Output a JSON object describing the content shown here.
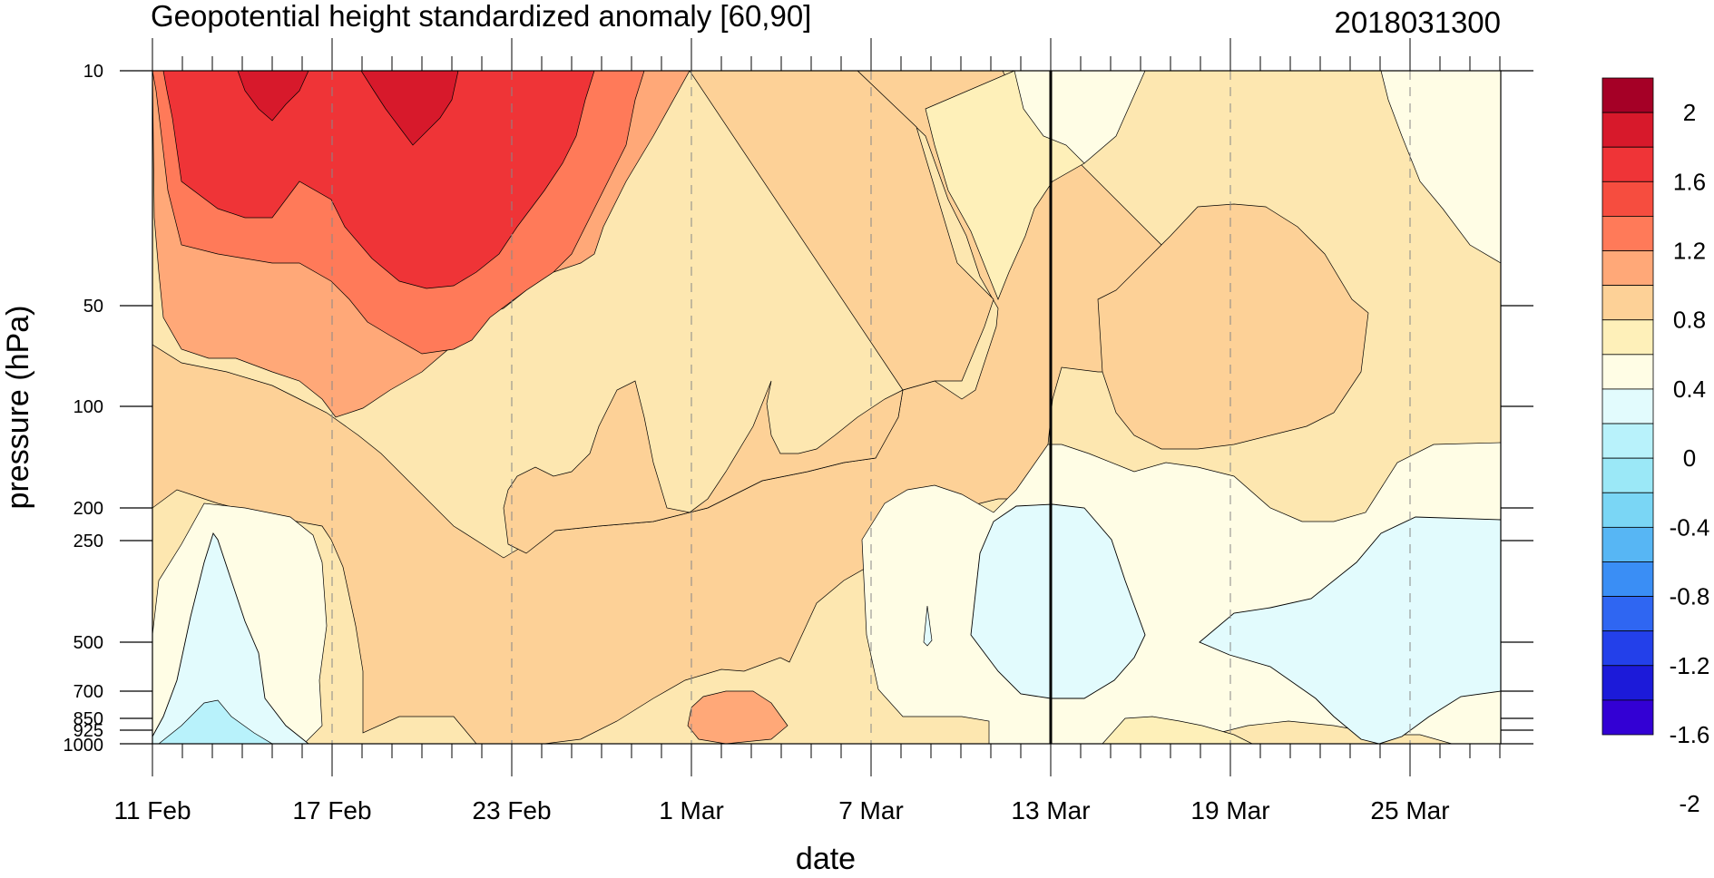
{
  "chart_data": {
    "type": "heatmap",
    "title": "Geopotential height standardized anomaly [60,90]",
    "subtitle": "2018031300",
    "xlabel": "date",
    "ylabel": "pressure (hPa)",
    "x_ticks": [
      "11 Feb",
      "17 Feb",
      "23 Feb",
      "1 Mar",
      "7 Mar",
      "13 Mar",
      "19 Mar",
      "25 Mar"
    ],
    "x_range": [
      "11 Feb",
      "27 Mar"
    ],
    "y_scale": "log",
    "y_reversed": true,
    "y_range": [
      1000,
      10
    ],
    "y_ticks": [
      10,
      50,
      100,
      200,
      250,
      500,
      700,
      850,
      925,
      1000
    ],
    "current_date_marker": "13 Mar",
    "grid": "dashed vertical at labeled dates",
    "colorbar": {
      "labels": [
        "2",
        "1.6",
        "1.2",
        "0.8",
        "0.4",
        "0",
        "-0.4",
        "-0.8",
        "-1.2",
        "-1.6",
        "-2"
      ],
      "colors": [
        "#a50026",
        "#d7192b",
        "#ef3437",
        "#f64d3f",
        "#ff7a59",
        "#ffa878",
        "#fdd197",
        "#fef0b9",
        "#fffde5",
        "#e2fbfd",
        "#b8f2fb",
        "#9be8f7",
        "#7ad6f5",
        "#57b6f4",
        "#3a8ef5",
        "#2f66f2",
        "#2340ea",
        "#1c1ad9",
        "#3300d4"
      ]
    },
    "regions": [
      {
        "value": "0 to 0.4",
        "color": "#fef0b9"
      },
      {
        "value": "0.4 to 0.8",
        "color": "#fdd197"
      },
      {
        "value": "0.8 to 1.2",
        "color": "#ffa878"
      },
      {
        "value": "1.2 to 1.6",
        "color": "#ff7a59"
      },
      {
        "value": "1.6 to 2",
        "color": "#ef3437"
      },
      {
        "value": ">2",
        "color": "#d7192b"
      },
      {
        "value": "-0.4 to 0",
        "color": "#fffde5"
      },
      {
        "value": "<-0.4",
        "color": "#e2fbfd"
      }
    ]
  }
}
